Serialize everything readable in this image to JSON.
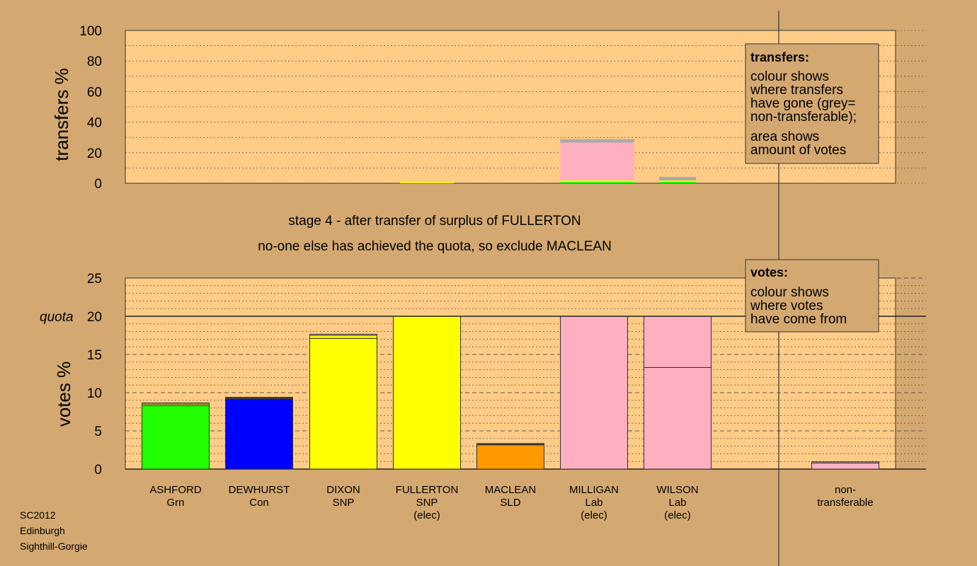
{
  "stage_line_1": "stage 4 - after transfer of surplus of FULLERTON",
  "stage_line_2": "no-one else has achieved the quota, so exclude MACLEAN",
  "footer": [
    "SC2012",
    "Edinburgh",
    "Sighthill-Gorgie"
  ],
  "colors": {
    "background": "#d4a971",
    "plot_area": "#ffcc88",
    "Grn": "#22ff00",
    "Con": "#0000ff",
    "SNP": "#ffff00",
    "SLD": "#ff9900",
    "Lab": "#ffb0c0",
    "non_transferable": "#aaaaaa"
  },
  "legend_transfers": {
    "title": "transfers:",
    "lines_a": [
      "colour shows",
      "where transfers",
      "have gone (grey=",
      "non-transferable);"
    ],
    "lines_b": [
      "area shows",
      "amount of votes"
    ]
  },
  "legend_votes": {
    "title": "votes:",
    "lines": [
      "colour shows",
      "where votes",
      "have come from"
    ]
  },
  "chart_data": [
    {
      "type": "bar",
      "title": "",
      "xlabel": "",
      "ylabel": "transfers %",
      "ylim": [
        0,
        100
      ],
      "yticks": [
        0,
        20,
        40,
        60,
        80,
        100
      ],
      "grid": true,
      "stacked": true,
      "categories": [
        "ASHFORD",
        "DEWHURST",
        "DIXON",
        "FULLERTON",
        "MACLEAN",
        "MILLIGAN",
        "WILSON"
      ],
      "series": [
        {
          "color_key": "Grn",
          "values": [
            0,
            0,
            0,
            0,
            0,
            1.0,
            1.0
          ]
        },
        {
          "color_key": "SNP",
          "values": [
            0,
            0,
            0,
            0.8,
            0,
            0.8,
            0.8
          ]
        },
        {
          "color_key": "Lab",
          "values": [
            0,
            0,
            0,
            0,
            0,
            24.8,
            0
          ]
        },
        {
          "color_key": "non_transferable",
          "values": [
            0,
            0,
            0,
            0,
            0,
            2.2,
            2.4
          ]
        }
      ],
      "bar_widths": [
        0,
        0,
        0,
        0.8,
        0,
        1.1,
        0.55
      ]
    },
    {
      "type": "bar",
      "title": "",
      "xlabel": "",
      "ylabel": "votes %",
      "ylim": [
        0,
        25
      ],
      "yticks": [
        0,
        5,
        10,
        15,
        20,
        25
      ],
      "quota_label": "quota",
      "quota": 20,
      "grid": true,
      "stacked": true,
      "categories": [
        {
          "name": "ASHFORD",
          "party": "Grn",
          "status": ""
        },
        {
          "name": "DEWHURST",
          "party": "Con",
          "status": ""
        },
        {
          "name": "DIXON",
          "party": "SNP",
          "status": ""
        },
        {
          "name": "FULLERTON",
          "party": "SNP",
          "status": "(elec)"
        },
        {
          "name": "MACLEAN",
          "party": "SLD",
          "status": ""
        },
        {
          "name": "MILLIGAN",
          "party": "Lab",
          "status": "(elec)"
        },
        {
          "name": "WILSON",
          "party": "Lab",
          "status": "(elec)"
        }
      ],
      "non_transferable": {
        "label_lines": [
          "non-",
          "transferable"
        ],
        "segments": [
          {
            "color_key": "Lab",
            "value": 0.8
          },
          {
            "color_key": "Lab",
            "value": 0.15
          }
        ]
      },
      "segments": [
        [
          {
            "color_key": "Grn",
            "value": 8.3
          },
          {
            "color_key": "SNP",
            "value": 0.2
          },
          {
            "color_key": "Lab",
            "value": 0.15
          }
        ],
        [
          {
            "color_key": "Con",
            "value": 9.2
          },
          {
            "color_key": "SNP",
            "value": 0.1
          },
          {
            "color_key": "Lab",
            "value": 0.1
          }
        ],
        [
          {
            "color_key": "SNP",
            "value": 17.1
          },
          {
            "color_key": "SNP",
            "value": 0.4
          },
          {
            "color_key": "Lab",
            "value": 0.15
          }
        ],
        [
          {
            "color_key": "SNP",
            "value": 20.0
          }
        ],
        [
          {
            "color_key": "SLD",
            "value": 3.2
          },
          {
            "color_key": "SNP",
            "value": 0.05
          },
          {
            "color_key": "Lab",
            "value": 0.1
          }
        ],
        [
          {
            "color_key": "Lab",
            "value": 20.0
          }
        ],
        [
          {
            "color_key": "Lab",
            "value": 13.3
          },
          {
            "color_key": "Lab",
            "value": 6.7
          }
        ]
      ]
    }
  ]
}
